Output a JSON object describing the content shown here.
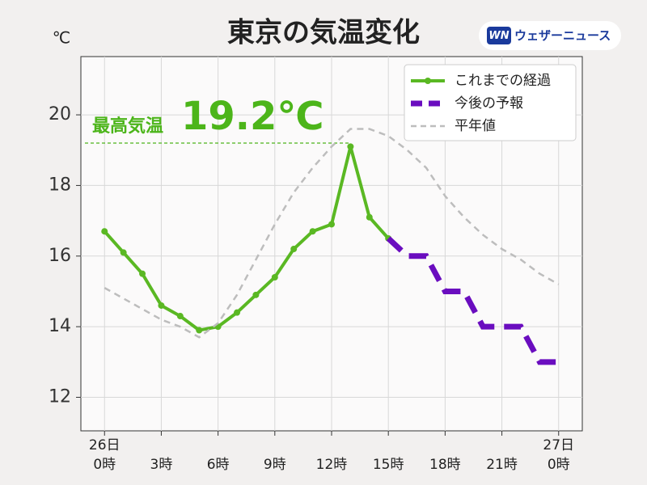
{
  "chart_data": {
    "type": "line",
    "title": "東京の気温変化",
    "y_unit": "℃",
    "brand": {
      "badge": "WN",
      "name": "ウェザーニュース"
    },
    "xlim": [
      -1.25,
      25.25
    ],
    "ylim": [
      11.05,
      21.65
    ],
    "yticks": [
      12,
      14,
      16,
      18,
      20
    ],
    "xticks": [
      {
        "value": 0,
        "label": "0時"
      },
      {
        "value": 3,
        "label": "3時"
      },
      {
        "value": 6,
        "label": "6時"
      },
      {
        "value": 9,
        "label": "9時"
      },
      {
        "value": 12,
        "label": "12時"
      },
      {
        "value": 15,
        "label": "15時"
      },
      {
        "value": 18,
        "label": "18時"
      },
      {
        "value": 21,
        "label": "21時"
      },
      {
        "value": 24,
        "label": "0時"
      }
    ],
    "date_labels": [
      {
        "value": 0,
        "label": "26日"
      },
      {
        "value": 24,
        "label": "27日"
      }
    ],
    "grid": true,
    "legend": "upper right",
    "max_annotation": {
      "label": "最高気温",
      "value": 19.2,
      "value_label": "19.2℃",
      "color": "#4cb51a"
    },
    "series": [
      {
        "name": "これまでの経過",
        "color": "#5ab823",
        "style": "solid",
        "marker": true,
        "x": [
          0,
          1,
          2,
          3,
          4,
          5,
          6,
          7,
          8,
          9,
          10,
          11,
          12,
          13,
          14,
          15
        ],
        "values": [
          16.7,
          16.1,
          15.5,
          14.6,
          14.3,
          13.9,
          14.0,
          14.4,
          14.9,
          15.4,
          16.2,
          16.7,
          16.9,
          19.1,
          17.1,
          16.5
        ]
      },
      {
        "name": "今後の予報",
        "color": "#6a0dbf",
        "style": "dashed",
        "marker": false,
        "x": [
          15,
          16,
          17,
          18,
          19,
          20,
          21,
          22,
          23,
          24
        ],
        "values": [
          16.5,
          16,
          16,
          15,
          15,
          14,
          14,
          14,
          13,
          13
        ]
      },
      {
        "name": "平年値",
        "color": "#bdbdbd",
        "style": "dashed",
        "marker": false,
        "x": [
          0,
          1,
          2,
          3,
          4,
          5,
          6,
          7,
          8,
          9,
          10,
          11,
          12,
          13,
          14,
          15,
          16,
          17,
          18,
          19,
          20,
          21,
          22,
          23,
          24
        ],
        "values": [
          15.1,
          14.8,
          14.5,
          14.2,
          14.0,
          13.7,
          14.1,
          14.9,
          15.9,
          16.9,
          17.8,
          18.5,
          19.1,
          19.6,
          19.6,
          19.4,
          19.0,
          18.5,
          17.7,
          17.1,
          16.6,
          16.2,
          15.9,
          15.5,
          15.2
        ]
      }
    ]
  }
}
